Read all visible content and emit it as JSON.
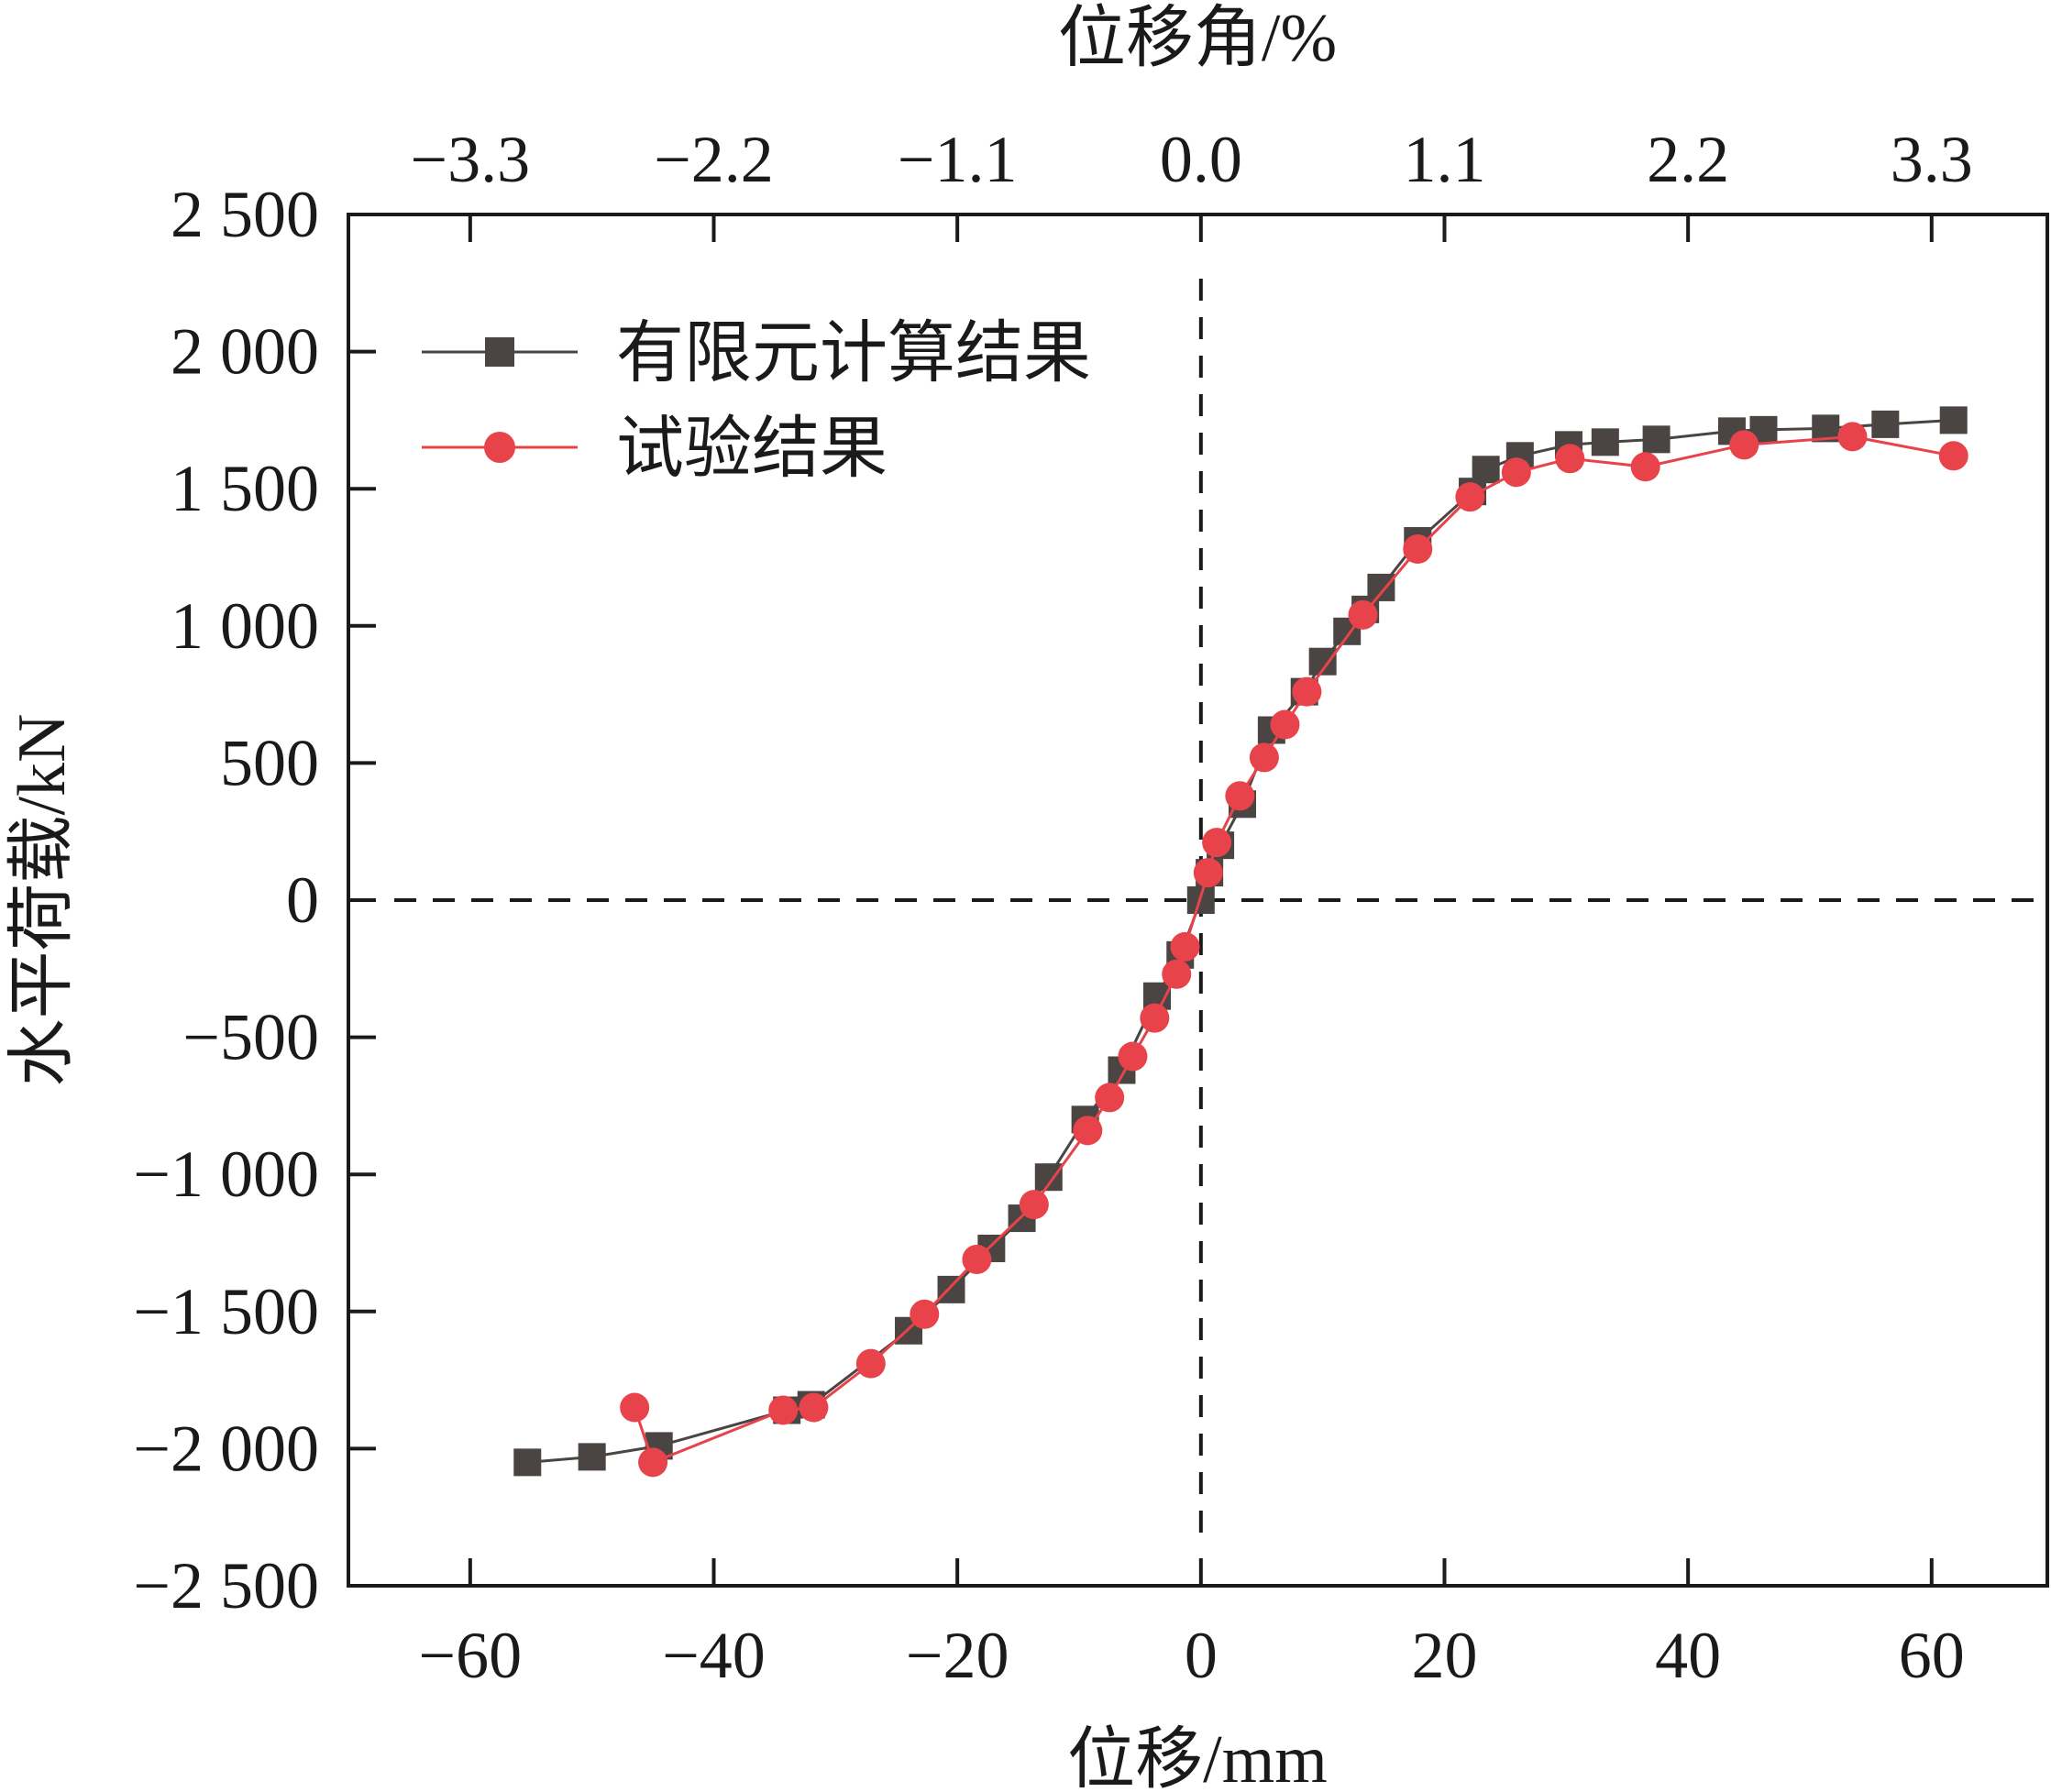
{
  "chart_data": {
    "type": "line",
    "xlabel": "位移/mm",
    "ylabel": "水平荷载/kN",
    "top_xlabel": "位移角/%",
    "xlim": [
      -70,
      69.5
    ],
    "ylim": [
      -2500,
      2500
    ],
    "xticks": [
      -60,
      -40,
      -20,
      0,
      20,
      40,
      60
    ],
    "xtick_labels": [
      "−60",
      "−40",
      "−20",
      "0",
      "20",
      "40",
      "60"
    ],
    "yticks": [
      2500,
      2000,
      1500,
      1000,
      500,
      0,
      -500,
      -1000,
      -1500,
      -2000,
      -2500
    ],
    "ytick_labels": [
      "2 500",
      "2 000",
      "1 500",
      "1 000",
      "500",
      "0",
      "−500",
      "−1 000",
      "−1 500",
      "−2 000",
      "−2 500"
    ],
    "top_ticks_at_x": [
      -60,
      -40,
      -20,
      0,
      20,
      40,
      60
    ],
    "top_tick_labels": [
      "−3.3",
      "−2.2",
      "−1.1",
      "0.0",
      "1.1",
      "2.2",
      "3.3"
    ],
    "reference_lines": {
      "x": 0,
      "y": 0,
      "style": "dashed"
    },
    "grid": false,
    "legend_position": "top-left",
    "series": [
      {
        "name": "有限元计算结果",
        "color": "#4a4542",
        "marker": "square",
        "points": [
          [
            -55.3,
            -2050
          ],
          [
            -50,
            -2030
          ],
          [
            -44.5,
            -1990
          ],
          [
            -34,
            -1860
          ],
          [
            -32,
            -1840
          ],
          [
            -24,
            -1570
          ],
          [
            -20.5,
            -1420
          ],
          [
            -17.2,
            -1270
          ],
          [
            -14.7,
            -1160
          ],
          [
            -12.5,
            -1010
          ],
          [
            -9.5,
            -800
          ],
          [
            -6.5,
            -620
          ],
          [
            -3.6,
            -350
          ],
          [
            -1.7,
            -200
          ],
          [
            0,
            0
          ],
          [
            0.7,
            100
          ],
          [
            1.6,
            200
          ],
          [
            3.4,
            350
          ],
          [
            5.8,
            620
          ],
          [
            8.5,
            760
          ],
          [
            10,
            870
          ],
          [
            12,
            980
          ],
          [
            13.5,
            1060
          ],
          [
            14.8,
            1140
          ],
          [
            17.8,
            1310
          ],
          [
            22.3,
            1490
          ],
          [
            23.4,
            1570
          ],
          [
            26.2,
            1620
          ],
          [
            30.2,
            1660
          ],
          [
            33.2,
            1670
          ],
          [
            37.4,
            1680
          ],
          [
            43.6,
            1710
          ],
          [
            46.2,
            1715
          ],
          [
            51.3,
            1720
          ],
          [
            56.2,
            1735
          ],
          [
            61.8,
            1750
          ]
        ]
      },
      {
        "name": "试验结果",
        "color": "#e8434a",
        "marker": "circle",
        "points": [
          [
            -46.5,
            -1850
          ],
          [
            -45,
            -2050
          ],
          [
            -34.3,
            -1860
          ],
          [
            -31.8,
            -1850
          ],
          [
            -27.1,
            -1690
          ],
          [
            -22.7,
            -1510
          ],
          [
            -18.4,
            -1310
          ],
          [
            -13.7,
            -1110
          ],
          [
            -9.3,
            -840
          ],
          [
            -7.5,
            -720
          ],
          [
            -5.6,
            -570
          ],
          [
            -3.8,
            -430
          ],
          [
            -2,
            -270
          ],
          [
            -1.3,
            -170
          ],
          [
            0.6,
            100
          ],
          [
            1.3,
            210
          ],
          [
            3.2,
            380
          ],
          [
            5.2,
            520
          ],
          [
            6.9,
            640
          ],
          [
            8.7,
            760
          ],
          [
            13.3,
            1040
          ],
          [
            17.8,
            1280
          ],
          [
            22.1,
            1470
          ],
          [
            25.9,
            1560
          ],
          [
            30.3,
            1610
          ],
          [
            36.5,
            1580
          ],
          [
            44.6,
            1660
          ],
          [
            53.5,
            1690
          ],
          [
            61.8,
            1620
          ]
        ]
      }
    ]
  }
}
